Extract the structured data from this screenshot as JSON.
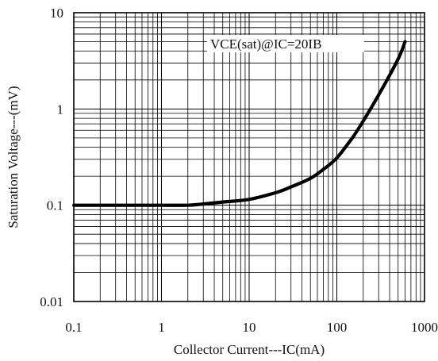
{
  "chart_data": {
    "type": "line",
    "title": "",
    "xlabel": "Collector Current---IC(mA)",
    "ylabel": "Saturation Voltage---(mV)",
    "x_scale": "log",
    "y_scale": "log",
    "xlim": [
      0.1,
      1000
    ],
    "ylim": [
      0.01,
      10
    ],
    "x_ticks": [
      0.1,
      1,
      10,
      100,
      1000
    ],
    "x_tick_labels": [
      "0.1",
      "1",
      "10",
      "100",
      "1000"
    ],
    "y_ticks": [
      0.01,
      0.1,
      1,
      10
    ],
    "y_tick_labels": [
      "0.01",
      "0.1",
      "1",
      "10"
    ],
    "grid": true,
    "annotation": "VCE(sat)@IC=20IB",
    "series": [
      {
        "color": "#000000",
        "x": [
          0.1,
          0.5,
          1,
          2,
          3,
          5,
          10,
          20,
          30,
          50,
          70,
          100,
          150,
          200,
          300,
          500,
          600
        ],
        "y": [
          0.1,
          0.1,
          0.1,
          0.1,
          0.103,
          0.108,
          0.115,
          0.135,
          0.155,
          0.19,
          0.235,
          0.31,
          0.5,
          0.75,
          1.4,
          3.3,
          5.0
        ]
      }
    ]
  }
}
